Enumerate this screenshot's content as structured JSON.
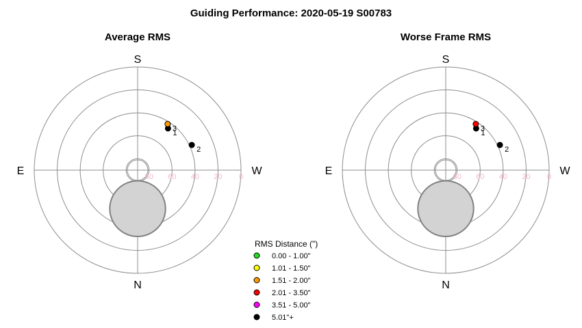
{
  "title": "Guiding Performance: 2020-05-19 S00783",
  "compass": {
    "top": "S",
    "bottom": "N",
    "left": "E",
    "right": "W"
  },
  "colors": {
    "ring": "#8c8c8c",
    "axis": "#8c8c8c",
    "tick_label": "#f4b6c8",
    "obstruction_fill": "#d3d3d3",
    "obstruction_stroke": "#808080"
  },
  "legend": {
    "title": "RMS Distance (\")",
    "items": [
      {
        "label": "0.00 - 1.00\"",
        "color": "#22dd22"
      },
      {
        "label": "1.01 - 1.50\"",
        "color": "#ffff00"
      },
      {
        "label": "1.51 - 2.00\"",
        "color": "#ff9900"
      },
      {
        "label": "2.01 - 3.50\"",
        "color": "#ff0000"
      },
      {
        "label": "3.51 - 5.00\"",
        "color": "#ff00ff"
      },
      {
        "label": "5.01\"+",
        "color": "#000000"
      }
    ]
  },
  "chart_data": [
    {
      "type": "scatter",
      "projection": "polar-altaz",
      "title": "Average RMS",
      "altitude_ticks": [
        80,
        60,
        40,
        20,
        0
      ],
      "altitude_rings": [
        90,
        80,
        60,
        40,
        20,
        0
      ],
      "obstruction": {
        "azimuth_deg": 0,
        "altitude_deg": 60,
        "radius_deg": 25
      },
      "points": [
        {
          "label": "1",
          "azimuth_deg": 144,
          "altitude_deg": 45,
          "color": "#000000"
        },
        {
          "label": "3",
          "azimuth_deg": 147,
          "altitude_deg": 42,
          "color": "#ff9900"
        },
        {
          "label": "2",
          "azimuth_deg": 115,
          "altitude_deg": 38,
          "color": "#000000"
        }
      ]
    },
    {
      "type": "scatter",
      "projection": "polar-altaz",
      "title": "Worse Frame RMS",
      "altitude_ticks": [
        80,
        60,
        40,
        20,
        0
      ],
      "altitude_rings": [
        90,
        80,
        60,
        40,
        20,
        0
      ],
      "obstruction": {
        "azimuth_deg": 0,
        "altitude_deg": 60,
        "radius_deg": 25
      },
      "points": [
        {
          "label": "1",
          "azimuth_deg": 144,
          "altitude_deg": 45,
          "color": "#000000"
        },
        {
          "label": "3",
          "azimuth_deg": 147,
          "altitude_deg": 42,
          "color": "#ff0000"
        },
        {
          "label": "2",
          "azimuth_deg": 115,
          "altitude_deg": 38,
          "color": "#000000"
        }
      ]
    }
  ]
}
